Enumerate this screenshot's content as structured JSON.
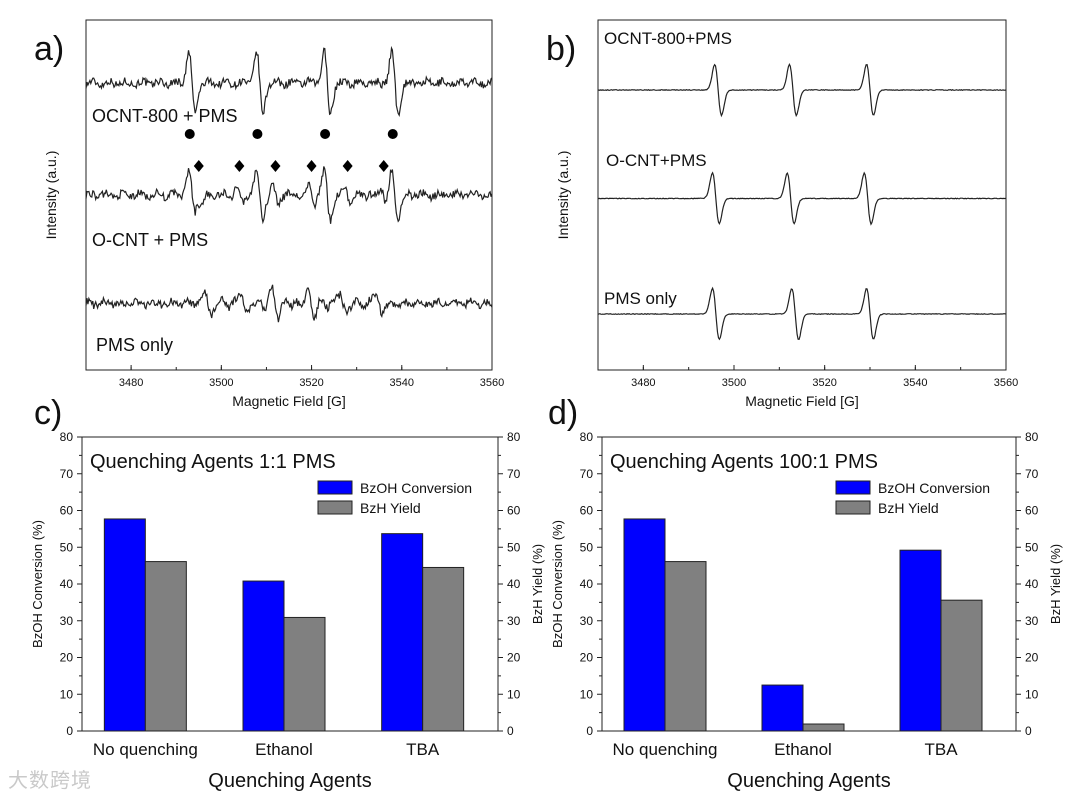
{
  "watermark": "大数跨境",
  "chart_data": [
    {
      "id": "a",
      "type": "line",
      "panel_label": "a)",
      "xlabel": "Magnetic Field [G]",
      "ylabel": "Intensity (a.u.)",
      "xlim": [
        3470,
        3560
      ],
      "xticks": [
        3480,
        3500,
        3520,
        3540,
        3560
      ],
      "series": [
        {
          "name": "OCNT-800 + PMS",
          "baseline": 0.82,
          "peaks": [
            3493.5,
            3508.5,
            3523.5,
            3538.5
          ],
          "peak_amp": 0.09
        },
        {
          "name": "O-CNT + PMS",
          "baseline": 0.5,
          "peaks": [
            3493.5,
            3508.5,
            3523.5,
            3538.5
          ],
          "peak_amp": 0.07
        },
        {
          "name": "PMS only",
          "baseline": 0.19,
          "peaks": [
            3497,
            3505,
            3512,
            3520,
            3527,
            3535
          ],
          "peak_amp": 0.03
        }
      ],
      "markers": {
        "circles": [
          3493,
          3508,
          3523,
          3538
        ],
        "diamonds": [
          3495,
          3504,
          3512,
          3520,
          3528,
          3536
        ]
      }
    },
    {
      "id": "b",
      "type": "line",
      "panel_label": "b)",
      "xlabel": "Magnetic Field [G]",
      "ylabel": "Intensity (a.u.)",
      "xlim": [
        3470,
        3560
      ],
      "xticks": [
        3480,
        3500,
        3520,
        3540,
        3560
      ],
      "series": [
        {
          "name": "OCNT-800+PMS",
          "baseline": 0.8,
          "peaks": [
            3496.5,
            3513.0,
            3530.0
          ]
        },
        {
          "name": "O-CNT+PMS",
          "baseline": 0.49,
          "peaks": [
            3496.0,
            3512.5,
            3529.5
          ]
        },
        {
          "name": "PMS only",
          "baseline": 0.16,
          "peaks": [
            3496.0,
            3513.5,
            3530.0
          ]
        }
      ]
    },
    {
      "id": "c",
      "type": "bar",
      "panel_label": "c)",
      "title": "Quenching Agents 1:1 PMS",
      "xlabel": "Quenching Agents",
      "ylabel": "BzOH Conversion (%)",
      "ylabel_right": "BzH Yield (%)",
      "ylim": [
        0,
        80
      ],
      "yticks": [
        0,
        10,
        20,
        30,
        40,
        50,
        60,
        70,
        80
      ],
      "categories": [
        "No quenching",
        "Ethanol",
        "TBA"
      ],
      "series": [
        {
          "name": "BzOH Conversion",
          "color": "#0000ff",
          "values": [
            57.7,
            40.8,
            53.7
          ]
        },
        {
          "name": "BzH Yield",
          "color": "#808080",
          "values": [
            46.1,
            30.9,
            44.5
          ]
        }
      ],
      "legend_position": "top-right"
    },
    {
      "id": "d",
      "type": "bar",
      "panel_label": "d)",
      "title": "Quenching Agents 100:1 PMS",
      "xlabel": "Quenching Agents",
      "ylabel": "BzOH Conversion (%)",
      "ylabel_right": "BzH Yield (%)",
      "ylim": [
        0,
        80
      ],
      "yticks": [
        0,
        10,
        20,
        30,
        40,
        50,
        60,
        70,
        80
      ],
      "categories": [
        "No quenching",
        "Ethanol",
        "TBA"
      ],
      "series": [
        {
          "name": "BzOH Conversion",
          "color": "#0000ff",
          "values": [
            57.7,
            12.5,
            49.2
          ]
        },
        {
          "name": "BzH Yield",
          "color": "#808080",
          "values": [
            46.1,
            1.9,
            35.6
          ]
        }
      ],
      "legend_position": "top-right"
    }
  ]
}
